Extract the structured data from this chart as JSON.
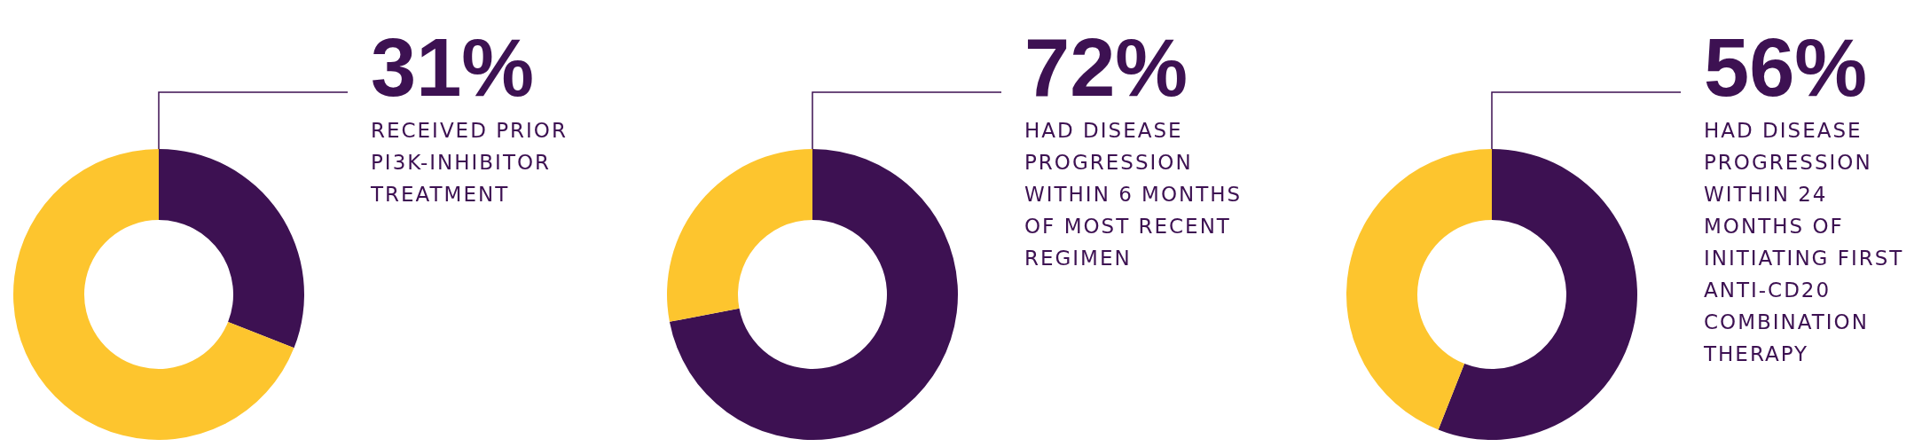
{
  "chart_data": [
    {
      "type": "donut",
      "categories": [
        null,
        null
      ],
      "values": [
        31,
        69
      ],
      "colors": [
        "#3d1152",
        "#fdc52e"
      ],
      "value_labels": [
        "31%",
        null
      ],
      "annotations": [
        "RECEIVED PRIOR\nPI3K-INHIBITOR\nTREATMENT"
      ]
    },
    {
      "type": "donut",
      "categories": [
        null,
        null
      ],
      "values": [
        72,
        28
      ],
      "colors": [
        "#3d1152",
        "#fdc52e"
      ],
      "value_labels": [
        "72%",
        null
      ],
      "annotations": [
        "HAD DISEASE\nPROGRESSION\nWITHIN 6 MONTHS\nOF MOST RECENT\nREGIMEN"
      ]
    },
    {
      "type": "donut",
      "categories": [
        null,
        null
      ],
      "values": [
        56,
        44
      ],
      "colors": [
        "#3d1152",
        "#fdc52e"
      ],
      "value_labels": [
        "56%",
        null
      ],
      "annotations": [
        "HAD DISEASE\nPROGRESSION\nWITHIN 24\nMONTHS OF\nINITIATING FIRST\nANTI-CD20\nCOMBINATION\nTHERAPY"
      ]
    }
  ]
}
